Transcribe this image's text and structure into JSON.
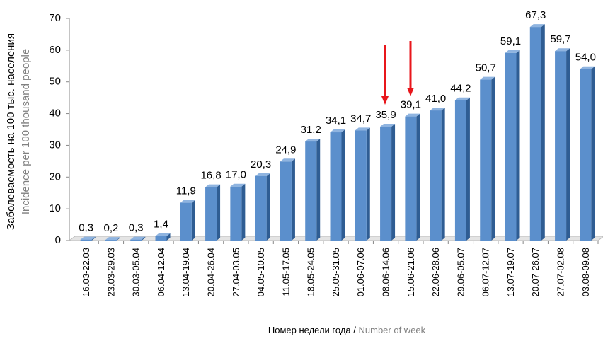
{
  "chart_data": {
    "type": "bar",
    "y_label": "Заболеваемость на 100 тыс. населения",
    "y_label_en": "Incidence per 100 thousand people",
    "x_label": "Номер недели года /",
    "x_label_en": "Number of week",
    "categories": [
      "16.03-22.03",
      "23.03-29.03",
      "30.03-05.04",
      "06.04-12.04",
      "13.04-19.04",
      "20.04-26.04",
      "27.04-03.05",
      "04.05-10.05",
      "11.05-17.05",
      "18.05-24.05",
      "25.05-31.05",
      "01.06-07.06",
      "08.06-14.06",
      "15.06-21.06",
      "22.06-28.06",
      "29.06-05.07",
      "06.07-12.07",
      "13.07-19.07",
      "20.07-26.07",
      "27.07-02.08",
      "03.08-09.08"
    ],
    "values": [
      0.3,
      0.2,
      0.3,
      1.4,
      11.9,
      16.8,
      17.0,
      20.3,
      24.9,
      31.2,
      34.1,
      34.7,
      35.9,
      39.1,
      41.0,
      44.2,
      50.7,
      59.1,
      67.3,
      59.7,
      54.0
    ],
    "value_labels": [
      "0,3",
      "0,2",
      "0,3",
      "1,4",
      "11,9",
      "16,8",
      "17,0",
      "20,3",
      "24,9",
      "31,2",
      "34,1",
      "34,7",
      "35,9",
      "39,1",
      "41,0",
      "44,2",
      "50,7",
      "59,1",
      "67,3",
      "59,7",
      "54,0"
    ],
    "color": "#5b8fcc",
    "ylim": [
      0,
      70
    ],
    "yticks": [
      0,
      10,
      20,
      30,
      40,
      50,
      60,
      70
    ]
  }
}
